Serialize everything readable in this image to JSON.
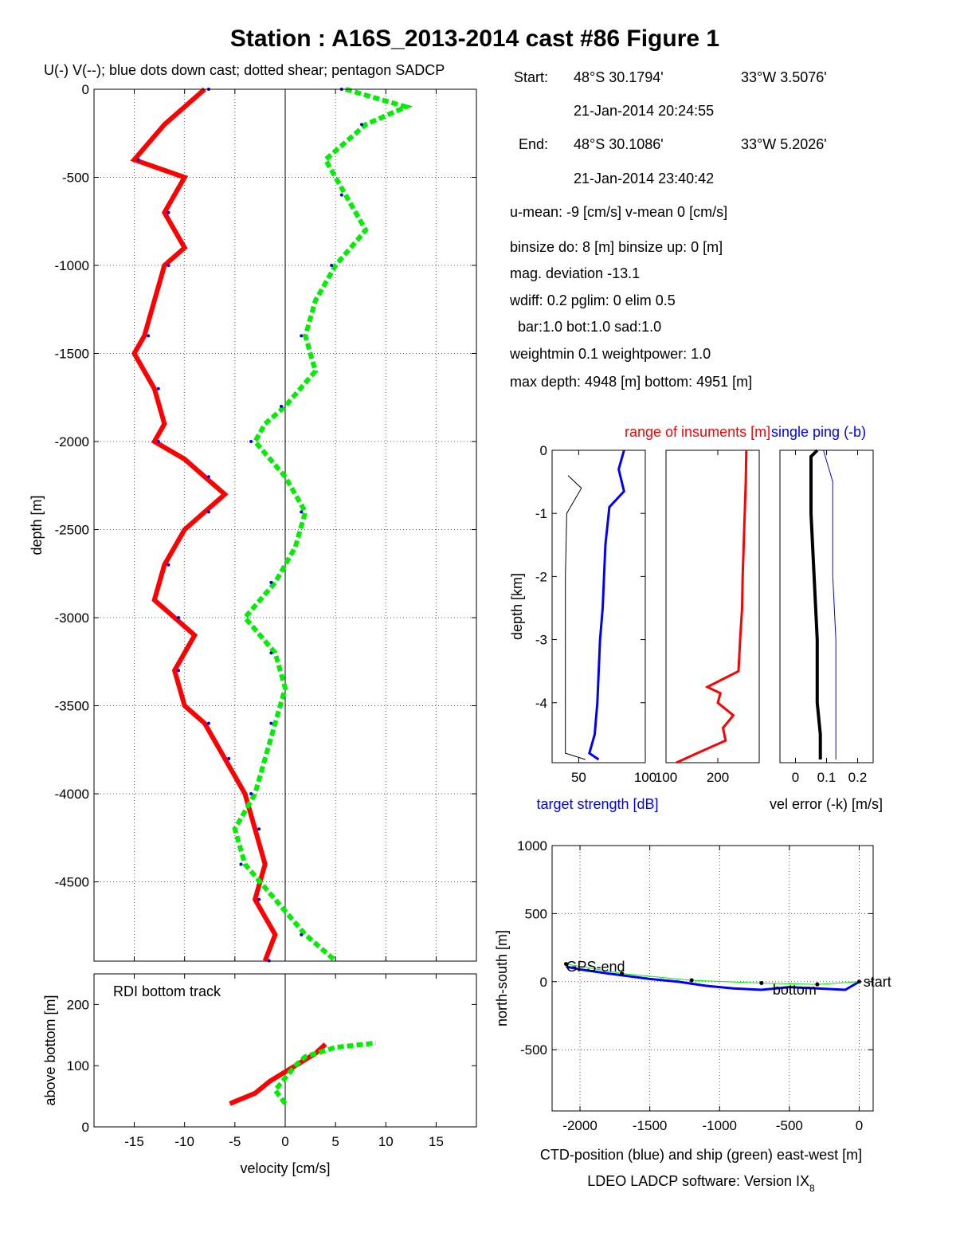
{
  "figure": {
    "title": "Station : A16S_2013-2014 cast #86  Figure 1",
    "footer": "LDEO LADCP software: Version IX",
    "footer_sub": "8"
  },
  "info": {
    "start_label": "Start:",
    "start_lat": "48°S 30.1794'",
    "start_lon": "33°W  3.5076'",
    "start_time": "21-Jan-2014 20:24:55",
    "end_label": "End:",
    "end_lat": "48°S 30.1086'",
    "end_lon": "33°W  5.2026'",
    "end_time": "21-Jan-2014 23:40:42",
    "means": "u-mean:  -9 [cm/s]    v-mean   0 [cm/s]",
    "binsize": "binsize do:  8 [m]  binsize up:  0 [m]",
    "magdev": "mag. deviation -13.1",
    "wdiff": "wdiff: 0.2  pglim: 0  elim 0.5",
    "bar": "bar:1.0 bot:1.0 sad:1.0",
    "weight": "weightmin 0.1  weightpower: 1.0",
    "maxdepth": "max depth: 4948 [m]   bottom: 4951 [m]"
  },
  "colors": {
    "u": "#ff0000",
    "v": "#00ee00",
    "downcast": "#0000ff",
    "axes": "#000000"
  },
  "chart_data": [
    {
      "type": "line",
      "panel": "velocity-profile",
      "title": "U(-) V(--); blue dots down cast; dotted shear; pentagon SADCP",
      "xlabel": "",
      "ylabel": "depth [m]",
      "xlim": [
        -19,
        19
      ],
      "ylim": [
        -4950,
        0
      ],
      "xticks": [
        -15,
        -10,
        -5,
        0,
        5,
        10,
        15
      ],
      "yticks": [
        0,
        -500,
        -1000,
        -1500,
        -2000,
        -2500,
        -3000,
        -3500,
        -4000,
        -4500
      ],
      "grid": true,
      "series": [
        {
          "color": "#ff0000",
          "depth": [
            0,
            -200,
            -400,
            -500,
            -700,
            -900,
            -1000,
            -1200,
            -1400,
            -1500,
            -1700,
            -1900,
            -2000,
            -2100,
            -2200,
            -2300,
            -2400,
            -2500,
            -2700,
            -2900,
            -3000,
            -3100,
            -3300,
            -3500,
            -3600,
            -3700,
            -3800,
            -4000,
            -4200,
            -4400,
            -4600,
            -4800,
            -4948
          ],
          "values": [
            -8,
            -12,
            -15,
            -10,
            -12,
            -10,
            -12,
            -13,
            -14,
            -15,
            -13,
            -12,
            -13,
            -10,
            -8,
            -6,
            -8,
            -10,
            -12,
            -13,
            -11,
            -9,
            -11,
            -10,
            -8,
            -7,
            -6,
            -4,
            -3,
            -2,
            -3,
            -1,
            -2
          ]
        },
        {
          "color": "#00ee00",
          "depth": [
            0,
            -100,
            -200,
            -400,
            -600,
            -800,
            -1000,
            -1200,
            -1400,
            -1600,
            -1800,
            -1900,
            -2000,
            -2200,
            -2400,
            -2600,
            -2800,
            -3000,
            -3200,
            -3400,
            -3600,
            -3800,
            -4000,
            -4200,
            -4400,
            -4600,
            -4800,
            -4948
          ],
          "values": [
            6,
            12,
            8,
            4,
            6,
            8,
            5,
            3,
            2,
            3,
            0,
            -2,
            -3,
            0,
            2,
            1,
            -1,
            -4,
            -1,
            0,
            -1,
            -2,
            -3,
            -5,
            -4,
            -1,
            2,
            5
          ]
        }
      ]
    },
    {
      "type": "line",
      "panel": "bottom-track",
      "title": "RDI bottom track",
      "xlabel": "velocity [cm/s]",
      "ylabel": "above bottom [m]",
      "xlim": [
        -19,
        19
      ],
      "ylim": [
        0,
        250
      ],
      "xticks": [
        -15,
        -10,
        -5,
        0,
        5,
        10,
        15
      ],
      "yticks": [
        0,
        100,
        200
      ],
      "series": [
        {
          "color": "#ff0000",
          "height": [
            38,
            55,
            75,
            90,
            105,
            120,
            135
          ],
          "values": [
            -5.5,
            -3,
            -1.5,
            0,
            1.5,
            3,
            4
          ]
        },
        {
          "color": "#00ee00",
          "height": [
            38,
            60,
            80,
            100,
            115,
            130,
            137
          ],
          "values": [
            0,
            -1,
            0,
            1,
            2,
            5,
            9
          ]
        }
      ]
    },
    {
      "type": "line",
      "panel": "target-strength",
      "title": "",
      "xlabel": "target strength [dB]",
      "ylabel": "depth [km]",
      "xlim": [
        30,
        100
      ],
      "ylim": [
        -4.95,
        0
      ],
      "xticks": [
        50,
        100
      ],
      "xticklabels": [
        "50",
        "100"
      ],
      "yticks": [
        0,
        -1,
        -2,
        -3,
        -4
      ],
      "series": [
        {
          "color": "#0000ff",
          "depth": [
            0,
            -0.3,
            -0.65,
            -0.9,
            -1.5,
            -2.0,
            -2.5,
            -3.0,
            -3.5,
            -4.0,
            -4.5,
            -4.8,
            -4.9
          ],
          "values": [
            84,
            80,
            84,
            73,
            70,
            69,
            68,
            66,
            65,
            64,
            62,
            58,
            65
          ]
        },
        {
          "color": "#000000",
          "depth": [
            -0.4,
            -0.6,
            -1.0,
            -2.0,
            -3.0,
            -4.0,
            -4.8,
            -4.9
          ],
          "values": [
            42,
            52,
            41,
            40,
            40,
            40,
            40,
            55
          ]
        }
      ]
    },
    {
      "type": "line",
      "panel": "instrument-range",
      "title": "range of insuments [m]",
      "xlabel": "",
      "ylabel": "",
      "xlim": [
        100,
        280
      ],
      "ylim": [
        -4.95,
        0
      ],
      "xticks": [
        100,
        200
      ],
      "xticklabels": [
        "100",
        "200"
      ],
      "series": [
        {
          "color": "#ff0000",
          "depth": [
            0,
            -0.5,
            -1.0,
            -1.5,
            -2.0,
            -2.5,
            -3.0,
            -3.5,
            -3.75,
            -3.85,
            -4.0,
            -4.2,
            -4.4,
            -4.6,
            -4.8,
            -4.95
          ],
          "values": [
            255,
            254,
            252,
            250,
            248,
            247,
            243,
            240,
            180,
            205,
            200,
            230,
            210,
            215,
            160,
            120
          ]
        }
      ]
    },
    {
      "type": "line",
      "panel": "velocity-error",
      "title": "single ping (-b)",
      "xlabel": "vel error (-k) [m/s]",
      "ylabel": "",
      "xlim": [
        -0.05,
        0.25
      ],
      "ylim": [
        -4.95,
        0
      ],
      "xticks": [
        0,
        0.1,
        0.2
      ],
      "xticklabels": [
        "0",
        "0.1",
        "0.2"
      ],
      "series": [
        {
          "color": "#000000",
          "depth": [
            0,
            -0.1,
            -0.5,
            -1.0,
            -2.0,
            -3.0,
            -4.0,
            -4.5,
            -4.9
          ],
          "values": [
            0.07,
            0.05,
            0.05,
            0.05,
            0.06,
            0.07,
            0.07,
            0.08,
            0.08
          ]
        },
        {
          "color": "#0000ff",
          "depth": [
            0,
            -0.5,
            -1.0,
            -2.0,
            -3.0,
            -4.0,
            -4.5,
            -4.9
          ],
          "values": [
            0.09,
            0.12,
            0.12,
            0.12,
            0.13,
            0.13,
            0.13,
            0.13
          ]
        }
      ]
    },
    {
      "type": "line",
      "panel": "track",
      "title": "",
      "xlabel": "CTD-position (blue) and ship (green) east-west [m]",
      "ylabel": "north-south [m]",
      "xlim": [
        -2200,
        100
      ],
      "ylim": [
        -950,
        1000
      ],
      "xticks": [
        -2000,
        -1500,
        -1000,
        -500,
        0
      ],
      "yticks": [
        1000,
        500,
        0,
        -500
      ],
      "grid": true,
      "annotations": [
        {
          "text": "GPS-end",
          "x": -2100,
          "y": 110
        },
        {
          "text": "start",
          "x": 30,
          "y": 0
        },
        {
          "text": "bottom",
          "x": -620,
          "y": -60
        }
      ],
      "series": [
        {
          "color": "#0000ff",
          "x": [
            0,
            -100,
            -300,
            -500,
            -700,
            -900,
            -1100,
            -1300,
            -1500,
            -1800,
            -2000,
            -2100
          ],
          "y": [
            0,
            -60,
            -50,
            -40,
            -60,
            -50,
            -30,
            0,
            20,
            60,
            90,
            110
          ]
        },
        {
          "color": "#00ee00",
          "x": [
            0,
            -300,
            -700,
            -1200,
            -1700,
            -2100
          ],
          "y": [
            0,
            -20,
            -10,
            10,
            60,
            130
          ]
        }
      ]
    }
  ]
}
